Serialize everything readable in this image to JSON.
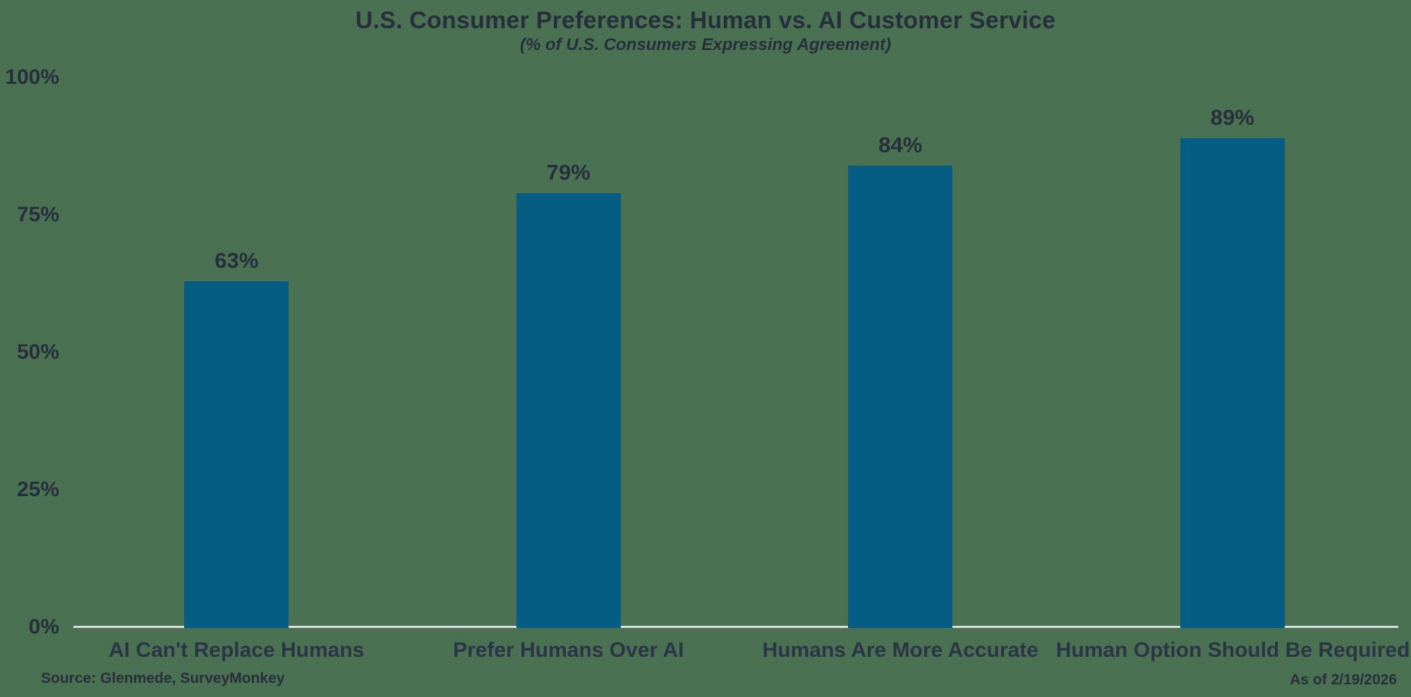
{
  "header": {
    "title": "U.S. Consumer Preferences: Human vs. AI Customer Service",
    "subtitle": "(% of U.S. Consumers Expressing Agreement)"
  },
  "footer": {
    "source": "Source: Glenmede, SurveyMonkey",
    "as_of": "As of 2/19/2026"
  },
  "chart_data": {
    "type": "bar",
    "title": "U.S. Consumer Preferences: Human vs. AI Customer Service",
    "subtitle": "(% of U.S. Consumers Expressing Agreement)",
    "categories": [
      "AI Can't Replace Humans",
      "Prefer Humans Over AI",
      "Humans Are More Accurate",
      "Human Option Should Be Required"
    ],
    "values": [
      63,
      79,
      84,
      89
    ],
    "value_labels": [
      "63%",
      "79%",
      "84%",
      "89%"
    ],
    "ytick_values": [
      0,
      25,
      50,
      75,
      100
    ],
    "ytick_labels": [
      "0%",
      "25%",
      "50%",
      "75%",
      "100%"
    ],
    "ylim": [
      0,
      100
    ],
    "xlabel": "",
    "ylabel": "",
    "grid": false,
    "legend_position": "none",
    "bar_color": "#065d83",
    "background_color": "#4a7152",
    "text_color": "#272f3d",
    "axis_line_color": "#d8dee1"
  }
}
